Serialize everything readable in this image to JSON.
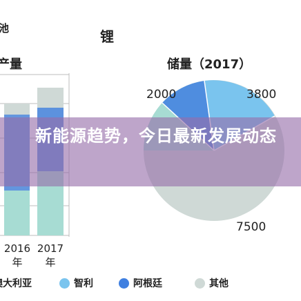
{
  "header": {
    "corner_text": "池",
    "title": "锂",
    "left_heading": "产量",
    "right_heading": "储量（2017）"
  },
  "bars": {
    "years": [
      {
        "line1": "2016",
        "line2": "年"
      },
      {
        "line1": "2017",
        "line2": "年"
      }
    ]
  },
  "pie": {
    "labels": [
      "2000",
      "3800",
      "7500"
    ]
  },
  "headline": "新能源趋势，今日最新发展动态",
  "legend": [
    {
      "label": "澳大利亚",
      "color": "#a7dcd3"
    },
    {
      "label": "智利",
      "color": "#7ac4ee"
    },
    {
      "label": "阿根廷",
      "color": "#3f7fe0"
    },
    {
      "label": "其他",
      "color": "#cfd9d6"
    }
  ],
  "colors": {
    "australia": "#a7dcd3",
    "chile": "#7ac4ee",
    "argentina": "#3f7fe0",
    "other": "#cfd9d6"
  }
}
